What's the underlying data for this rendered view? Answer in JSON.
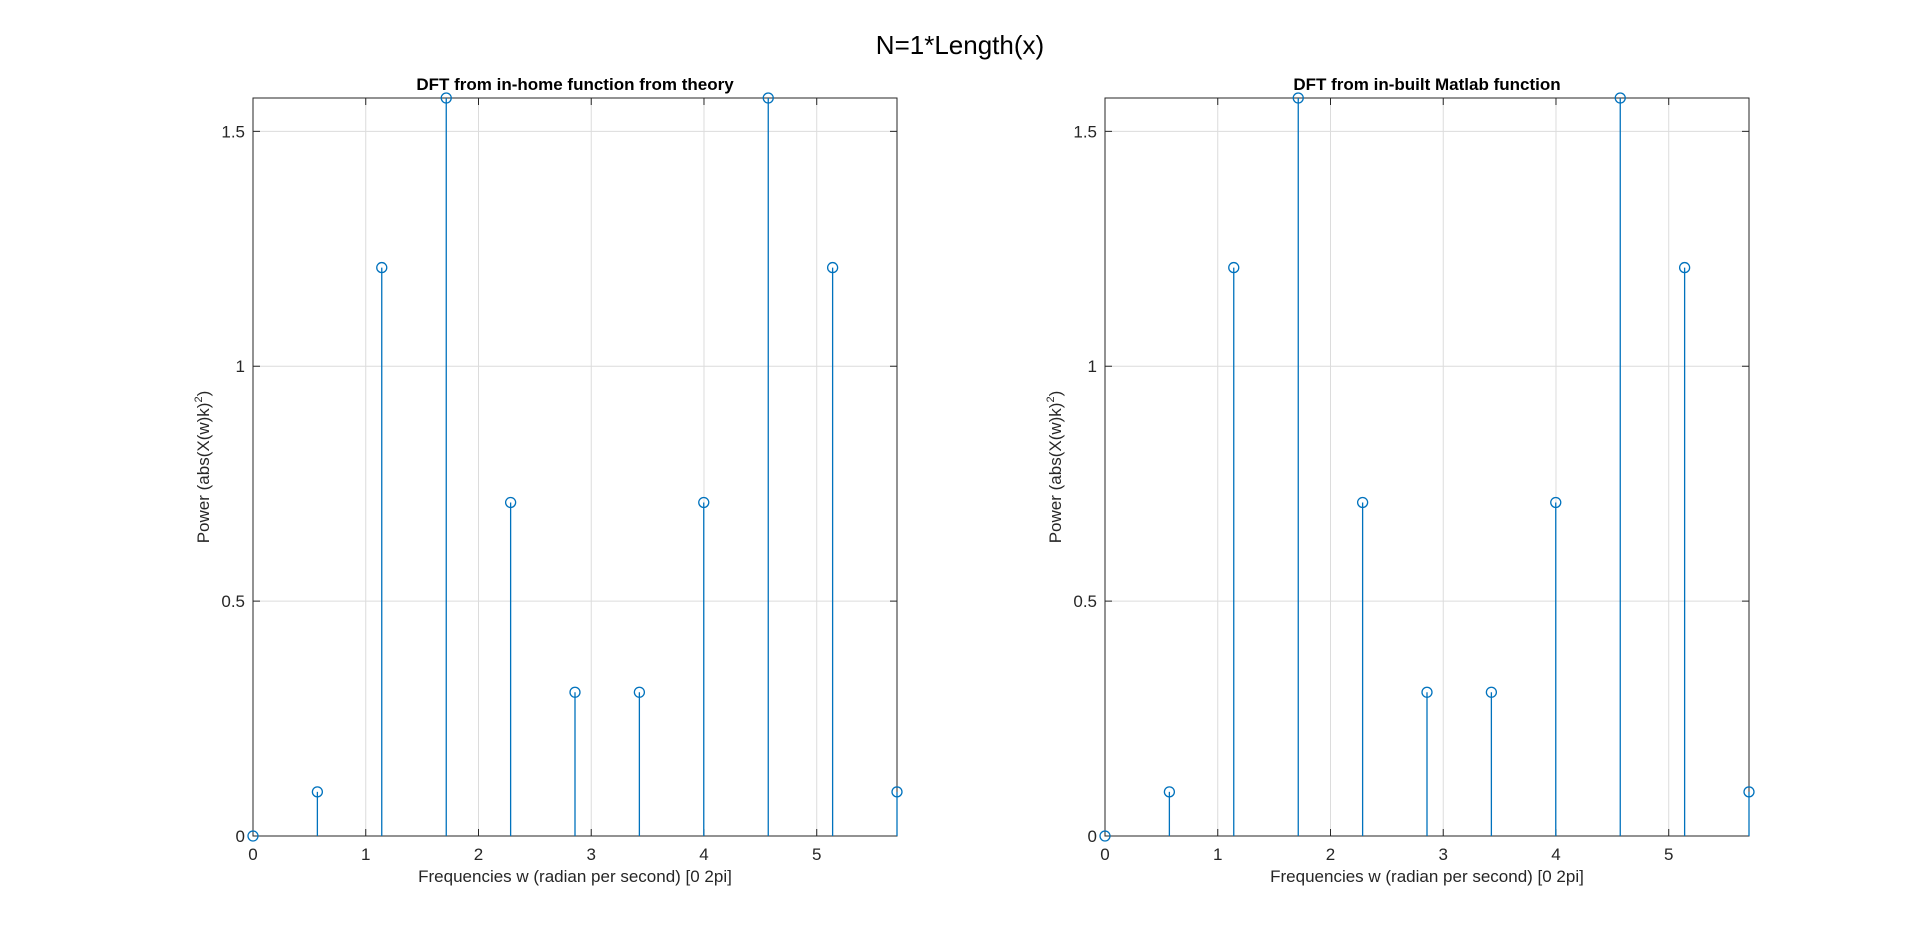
{
  "figure": {
    "title": "N=1*Length(x)"
  },
  "chart_data": [
    {
      "type": "stem",
      "title": "DFT from in-home function from theory",
      "xlabel": "Frequencies w (radian per second) [0 2pi]",
      "ylabel": {
        "main": "Power (abs(X(w)k)",
        "sup": "2",
        "tail": ")"
      },
      "xlim": [
        0,
        5.712
      ],
      "ylim": [
        0,
        1.571
      ],
      "xticks": [
        0,
        1,
        2,
        3,
        4,
        5
      ],
      "xtick_labels": [
        "0",
        "1",
        "2",
        "3",
        "4",
        "5"
      ],
      "yticks": [
        0,
        0.5,
        1,
        1.5
      ],
      "ytick_labels": [
        "0",
        "0.5",
        "1",
        "1.5"
      ],
      "grid": true,
      "series": [
        {
          "color": "#0072BD",
          "x": [
            0,
            0.571,
            1.142,
            1.714,
            2.285,
            2.856,
            3.427,
            3.998,
            4.57,
            5.141,
            5.712
          ],
          "y": [
            0,
            0.094,
            1.21,
            1.571,
            0.71,
            0.306,
            0.306,
            0.71,
            1.571,
            1.21,
            0.094
          ]
        }
      ]
    },
    {
      "type": "stem",
      "title": "DFT from in-built Matlab function",
      "xlabel": "Frequencies w (radian per second) [0 2pi]",
      "ylabel": {
        "main": "Power (abs(X(w)k)",
        "sup": "2",
        "tail": ")"
      },
      "xlim": [
        0,
        5.712
      ],
      "ylim": [
        0,
        1.571
      ],
      "xticks": [
        0,
        1,
        2,
        3,
        4,
        5
      ],
      "xtick_labels": [
        "0",
        "1",
        "2",
        "3",
        "4",
        "5"
      ],
      "yticks": [
        0,
        0.5,
        1,
        1.5
      ],
      "ytick_labels": [
        "0",
        "0.5",
        "1",
        "1.5"
      ],
      "grid": true,
      "series": [
        {
          "color": "#0072BD",
          "x": [
            0,
            0.571,
            1.142,
            1.714,
            2.285,
            2.856,
            3.427,
            3.998,
            4.57,
            5.141,
            5.712
          ],
          "y": [
            0,
            0.094,
            1.21,
            1.571,
            0.71,
            0.306,
            0.306,
            0.71,
            1.571,
            1.21,
            0.094
          ]
        }
      ]
    }
  ]
}
